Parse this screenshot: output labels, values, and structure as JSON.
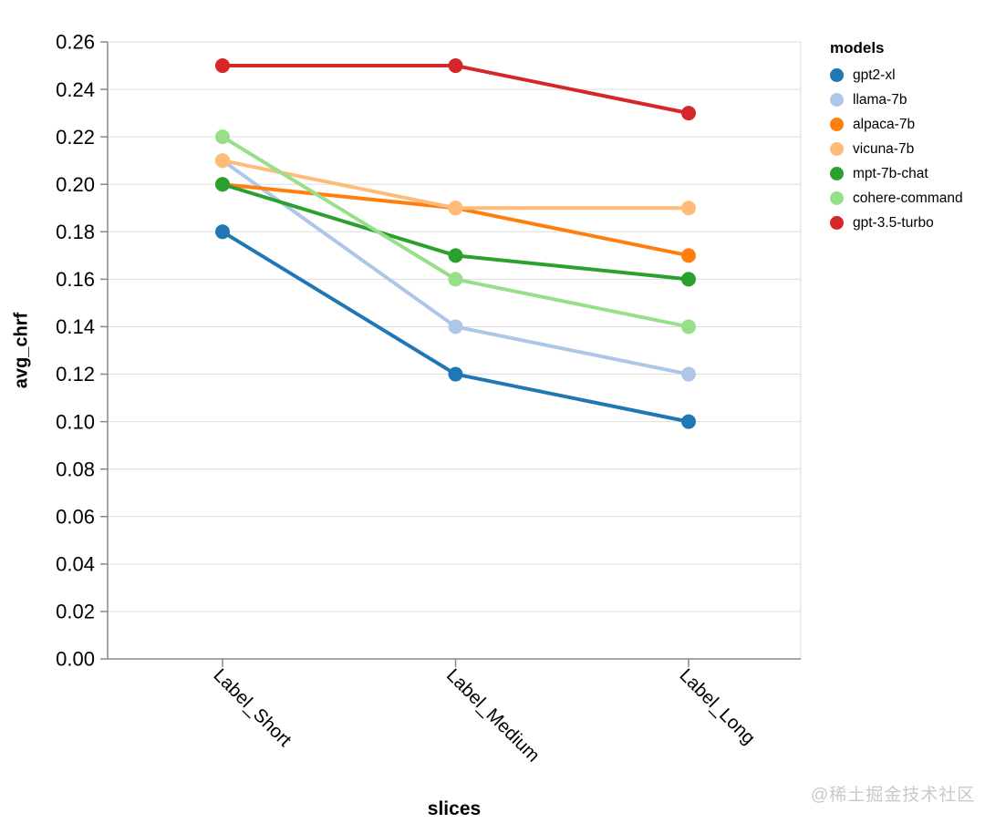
{
  "watermark": "@稀土掘金技术社区",
  "chart_data": {
    "type": "line",
    "title": "",
    "xlabel": "slices",
    "ylabel": "avg_chrf",
    "legend_title": "models",
    "legend_position": "right",
    "grid": true,
    "categories": [
      "Label_Short",
      "Label_Medium",
      "Label_Long"
    ],
    "series": [
      {
        "name": "gpt2-xl",
        "color": "#1f77b4",
        "values": [
          0.18,
          0.12,
          0.1
        ]
      },
      {
        "name": "llama-7b",
        "color": "#aec7e8",
        "values": [
          0.21,
          0.14,
          0.12
        ]
      },
      {
        "name": "alpaca-7b",
        "color": "#ff7f0e",
        "values": [
          0.2,
          0.19,
          0.17
        ]
      },
      {
        "name": "vicuna-7b",
        "color": "#ffbb78",
        "values": [
          0.21,
          0.19,
          0.19
        ]
      },
      {
        "name": "mpt-7b-chat",
        "color": "#2ca02c",
        "values": [
          0.2,
          0.17,
          0.16
        ]
      },
      {
        "name": "cohere-command",
        "color": "#98df8a",
        "values": [
          0.22,
          0.16,
          0.14
        ]
      },
      {
        "name": "gpt-3.5-turbo",
        "color": "#d62728",
        "values": [
          0.25,
          0.25,
          0.23
        ]
      }
    ],
    "ylim": [
      0,
      0.26
    ],
    "y_ticks": [
      "0.00",
      "0.02",
      "0.04",
      "0.06",
      "0.08",
      "0.10",
      "0.12",
      "0.14",
      "0.16",
      "0.18",
      "0.20",
      "0.22",
      "0.24",
      "0.26"
    ],
    "axis_colors": {
      "domain": "#888888",
      "grid": "#dddddd",
      "label": "#000000"
    }
  }
}
